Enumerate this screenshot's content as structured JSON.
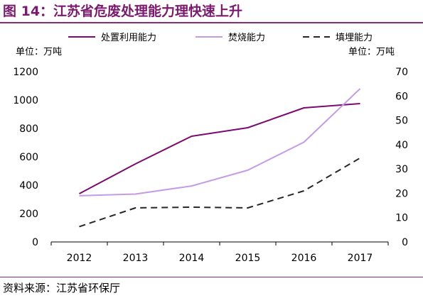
{
  "figure": {
    "title": "图 14：江苏省危废处理能力理快速上升",
    "source": "资料来源：江苏省环保厅"
  },
  "chart_data": {
    "type": "line",
    "title": "",
    "categories": [
      "2012",
      "2013",
      "2014",
      "2015",
      "2016",
      "2017"
    ],
    "left_axis": {
      "unit_label": "单位：万吨",
      "ylim": [
        0,
        1200
      ],
      "ticks": [
        "0",
        "200",
        "400",
        "600",
        "800",
        "1000",
        "1200"
      ]
    },
    "right_axis": {
      "unit_label": "单位：万吨",
      "ylim": [
        0,
        70
      ],
      "ticks": [
        "0",
        "10",
        "20",
        "30",
        "40",
        "50",
        "60",
        "70"
      ]
    },
    "series": [
      {
        "name": "处置利用能力",
        "axis": "left",
        "color": "#7b0a73",
        "dash": "solid",
        "values": [
          340,
          550,
          745,
          805,
          945,
          975
        ]
      },
      {
        "name": "焚烧能力",
        "axis": "right",
        "color": "#c49be8",
        "dash": "solid",
        "values": [
          19,
          19.7,
          23,
          29.5,
          41,
          63
        ]
      },
      {
        "name": "填埋能力",
        "axis": "right",
        "color": "#262626",
        "dash": "dashed",
        "values": [
          6.3,
          14,
          14.3,
          14,
          21,
          34.5
        ]
      }
    ],
    "legend": "top",
    "grid": false
  }
}
